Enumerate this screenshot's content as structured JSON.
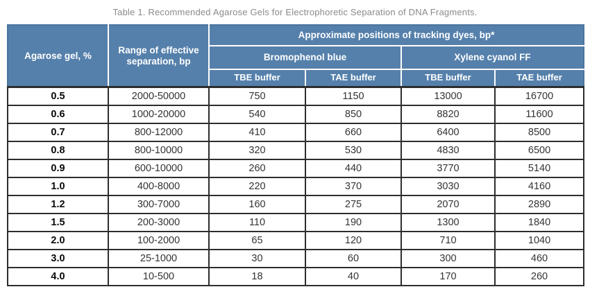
{
  "title": "Table 1. Recommended Agarose Gels for Electrophoretic Separation of DNA Fragments.",
  "table": {
    "header": {
      "agarose": "Agarose gel, %",
      "range": "Range of effective separation, bp",
      "tracking_dyes": "Approximate positions of tracking dyes, bp*",
      "bromophenol": "Bromophenol blue",
      "xylene": "Xylene cyanol FF",
      "buffers": [
        "TBE buffer",
        "TAE buffer",
        "TBE buffer",
        "TAE buffer"
      ]
    },
    "rows": [
      [
        "0.5",
        "2000-50000",
        "750",
        "1150",
        "13000",
        "16700"
      ],
      [
        "0.6",
        "1000-20000",
        "540",
        "850",
        "8820",
        "11600"
      ],
      [
        "0.7",
        "800-12000",
        "410",
        "660",
        "6400",
        "8500"
      ],
      [
        "0.8",
        "800-10000",
        "320",
        "530",
        "4830",
        "6500"
      ],
      [
        "0.9",
        "600-10000",
        "260",
        "440",
        "3770",
        "5140"
      ],
      [
        "1.0",
        "400-8000",
        "220",
        "370",
        "3030",
        "4160"
      ],
      [
        "1.2",
        "300-7000",
        "160",
        "275",
        "2070",
        "2890"
      ],
      [
        "1.5",
        "200-3000",
        "110",
        "190",
        "1300",
        "1840"
      ],
      [
        "2.0",
        "100-2000",
        "65",
        "120",
        "710",
        "1040"
      ],
      [
        "3.0",
        "25-1000",
        "30",
        "60",
        "300",
        "460"
      ],
      [
        "4.0",
        "10-500",
        "18",
        "40",
        "170",
        "260"
      ]
    ]
  },
  "colors": {
    "header_bg": "#5580ab",
    "header_text": "#ffffff",
    "header_grid": "#ffffff",
    "body_border": "#2d2d2d",
    "title_text": "#8a8a8a"
  }
}
